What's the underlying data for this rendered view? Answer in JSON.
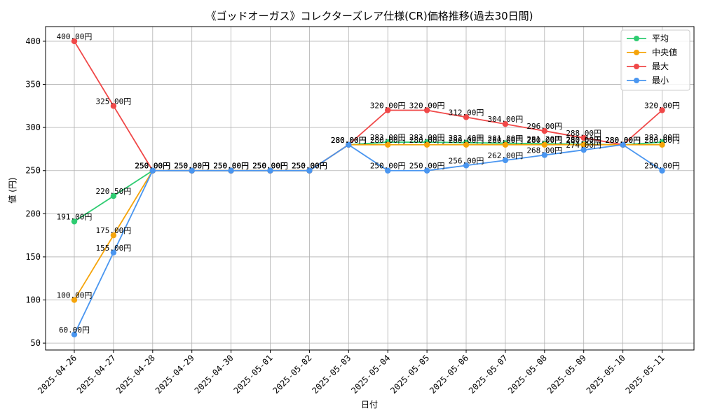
{
  "chart_data": {
    "type": "line",
    "title": "《ゴッドオーガス》コレクターズレア仕様(CR)価格推移(過去30日間)",
    "xlabel": "日付",
    "ylabel": "値 (円)",
    "ylim": [
      42,
      417
    ],
    "yticks": [
      50,
      100,
      150,
      200,
      250,
      300,
      350,
      400
    ],
    "grid": true,
    "legend_position": "top-right",
    "label_suffix": "円",
    "categories": [
      "2025-04-26",
      "2025-04-27",
      "2025-04-28",
      "2025-04-29",
      "2025-04-30",
      "2025-05-01",
      "2025-05-02",
      "2025-05-03",
      "2025-05-04",
      "2025-05-05",
      "2025-05-06",
      "2025-05-07",
      "2025-05-08",
      "2025-05-09",
      "2025-05-10",
      "2025-05-11"
    ],
    "series": [
      {
        "name": "平均",
        "color": "#2ecc71",
        "values": [
          191.0,
          220.5,
          250.0,
          250.0,
          250.0,
          250.0,
          250.0,
          280.0,
          283.0,
          283.0,
          282.4,
          281.8,
          281.2,
          280.6,
          280.0,
          283.0
        ]
      },
      {
        "name": "中央値",
        "color": "#f5a40a",
        "values": [
          100.0,
          175.0,
          250.0,
          250.0,
          250.0,
          250.0,
          250.0,
          280.0,
          280.0,
          280.0,
          280.0,
          280.0,
          280.0,
          280.0,
          280.0,
          280.0
        ]
      },
      {
        "name": "最大",
        "color": "#f04848",
        "values": [
          400.0,
          325.0,
          250.0,
          250.0,
          250.0,
          250.0,
          250.0,
          280.0,
          320.0,
          320.0,
          312.0,
          304.0,
          296.0,
          288.0,
          280.0,
          320.0
        ]
      },
      {
        "name": "最小",
        "color": "#4a96f0",
        "values": [
          60.0,
          155.0,
          250.0,
          250.0,
          250.0,
          250.0,
          250.0,
          280.0,
          250.0,
          250.0,
          256.0,
          262.0,
          268.0,
          274.0,
          280.0,
          250.0
        ]
      }
    ]
  }
}
